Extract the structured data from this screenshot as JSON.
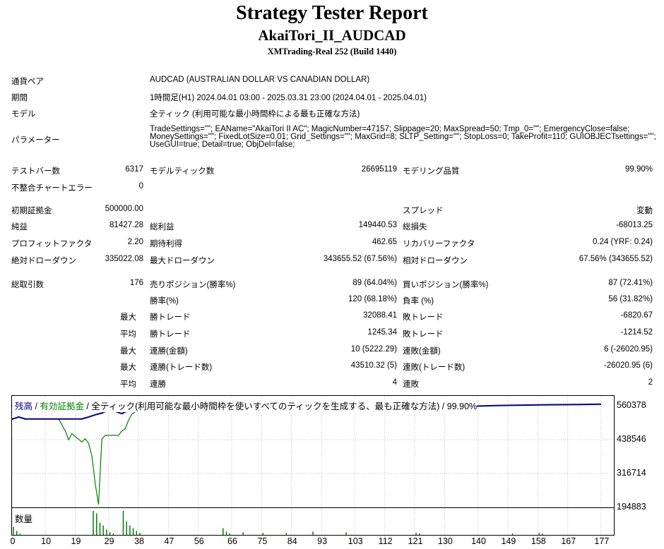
{
  "header": {
    "title": "Strategy Tester Report",
    "subtitle": "AkaiTori_II_AUDCAD",
    "server": "XMTrading-Real 252 (Build 1440)"
  },
  "settings": {
    "symbol_label": "通貨ペア",
    "symbol_value": "AUDCAD (AUSTRALIAN DOLLAR VS CANADIAN DOLLAR)",
    "period_label": "期間",
    "period_value": "1時間足(H1) 2024.04.01 03:00 - 2025.03.31 23:00 (2024.04.01 - 2025.04.01)",
    "model_label": "モデル",
    "model_value": "全ティック (利用可能な最小時間枠による最も正確な方法)",
    "params_label": "パラメーター",
    "params_value": "TradeSettings=\"\"; EAName=\"AkaiTori II AC\"; MagicNumber=47157; Slippage=20; MaxSpread=50; Tmp_0=\"\"; EmergencyClose=false; MoneySettings=\"\"; FixedLotSize=0.01; Grid_Settings=\"\"; MaxGrid=8; SLTP_Setting=\"\"; StopLoss=0; TakeProfit=110; GUIOBJECTsettings=\"\"; UseGUI=true; Detail=true; ObjDel=false;"
  },
  "quality": {
    "bars_label": "テストバー数",
    "bars_value": "6317",
    "ticks_label": "モデルティック数",
    "ticks_value": "26695119",
    "modeling_label": "モデリング品質",
    "modeling_value": "99.90%",
    "errors_label": "不整合チャートエラー",
    "errors_value": "0"
  },
  "results": {
    "deposit_label": "初期証拠金",
    "deposit_value": "500000.00",
    "spread_label": "スプレッド",
    "spread_value": "変動",
    "net_label": "純益",
    "net_value": "81427.28",
    "gross_profit_label": "総利益",
    "gross_profit_value": "149440.53",
    "gross_loss_label": "総損失",
    "gross_loss_value": "-68013.25",
    "pf_label": "プロフィットファクタ",
    "pf_value": "2.20",
    "payoff_label": "期待利得",
    "payoff_value": "462.65",
    "recovery_label": "リカバリーファクタ",
    "recovery_value": "0.24 (YRF: 0.24)",
    "abs_dd_label": "絶対ドローダウン",
    "abs_dd_value": "335022.08",
    "max_dd_label": "最大ドローダウン",
    "max_dd_value": "343655.52 (67.56%)",
    "rel_dd_label": "相対ドローダウン",
    "rel_dd_value": "67.56% (343655.52)"
  },
  "trades": {
    "total_label": "総取引数",
    "total_value": "176",
    "short_label": "売りポジション(勝率%)",
    "short_value": "89 (64.04%)",
    "long_label": "買いポジション(勝率%)",
    "long_value": "87 (72.41%)",
    "win_rate_label": "勝率(%)",
    "win_rate_value": "120 (68.18%)",
    "loss_rate_label": "負率 (%)",
    "loss_rate_value": "56 (31.82%)",
    "max1": "最大",
    "largest_win_label": "勝トレード",
    "largest_win_value": "32088.41",
    "largest_loss_label": "敗トレード",
    "largest_loss_value": "-6820.67",
    "avg1": "平均",
    "avg_win_label": "勝トレード",
    "avg_win_value": "1245.34",
    "avg_loss_label": "敗トレード",
    "avg_loss_value": "-1214.52",
    "max2": "最大",
    "cons_wins_amt_label": "連勝(金額)",
    "cons_wins_amt_value": "10 (5222.29)",
    "cons_loss_amt_label": "連敗(金額)",
    "cons_loss_amt_value": "6 (-26020.95)",
    "max3": "最大",
    "cons_wins_tr_label": "連勝(トレード数)",
    "cons_wins_tr_value": "43510.32 (5)",
    "cons_loss_tr_label": "連敗(トレード数)",
    "cons_loss_tr_value": "-26020.95 (6)",
    "avg2": "平均",
    "avg_cons_wins_label": "連勝",
    "avg_cons_wins_value": "4",
    "avg_cons_loss_label": "連敗",
    "avg_cons_loss_value": "2"
  },
  "chart_legend": {
    "balance": "残高",
    "sep1": " / ",
    "equity": "有効証拠金",
    "rest": " / 全ティック(利用可能な最小時間枠を使いすべてのティックを生成する、最も正確な方法) / 99.90%"
  },
  "volume_label": "数量",
  "colors": {
    "balance": "#000080",
    "equity": "#008000",
    "volume": "#008000",
    "grid": "#c0c0c0"
  },
  "chart_data": {
    "type": "line",
    "x_ticks": [
      "0",
      "10",
      "19",
      "29",
      "38",
      "47",
      "56",
      "66",
      "75",
      "84",
      "93",
      "103",
      "112",
      "121",
      "130",
      "140",
      "149",
      "158",
      "167",
      "177"
    ],
    "x_range": [
      0,
      180
    ],
    "y_ticks": [
      "560378",
      "438546",
      "316714",
      "194883"
    ],
    "ylim": [
      194883,
      560378
    ],
    "series": [
      {
        "name": "残高",
        "x": [
          0,
          2,
          4,
          21,
          23,
          25,
          27,
          29,
          30,
          31,
          33,
          34,
          36,
          38,
          40,
          42,
          48,
          60,
          70,
          80,
          100,
          120,
          140,
          145,
          150,
          160,
          170,
          177
        ],
        "y": [
          512000,
          520000,
          513000,
          513000,
          520000,
          528000,
          534000,
          545000,
          548000,
          540000,
          532000,
          538000,
          548000,
          552000,
          549000,
          550000,
          552000,
          553000,
          554000,
          555000,
          556000,
          557000,
          559000,
          561000,
          562000,
          564000,
          565000,
          566000
        ]
      },
      {
        "name": "有効証拠金",
        "x": [
          0,
          2,
          4,
          14,
          16,
          17,
          18,
          20,
          21,
          22,
          23,
          24,
          25,
          26,
          27,
          28,
          30,
          31,
          32,
          33,
          34,
          35,
          36,
          37,
          38
        ],
        "y": [
          512000,
          519000,
          513000,
          513000,
          470000,
          438000,
          460000,
          440000,
          430000,
          442000,
          425000,
          380000,
          280000,
          205000,
          440000,
          454000,
          454000,
          454000,
          453000,
          470000,
          478000,
          508000,
          530000,
          538000,
          544000
        ]
      }
    ],
    "volume": {
      "label": "数量",
      "x": [
        0,
        1,
        2,
        24,
        25,
        26,
        27,
        28,
        29,
        30,
        33,
        34,
        35,
        36,
        37,
        38,
        63,
        64,
        65,
        69,
        75,
        82,
        90,
        100,
        121,
        122,
        150,
        158,
        159
      ],
      "y": [
        12,
        6,
        2,
        36,
        32,
        18,
        14,
        8,
        4,
        2,
        36,
        20,
        14,
        10,
        6,
        3,
        10,
        5,
        2,
        4,
        3,
        3,
        5,
        4,
        3,
        2,
        2,
        3,
        2
      ]
    }
  }
}
